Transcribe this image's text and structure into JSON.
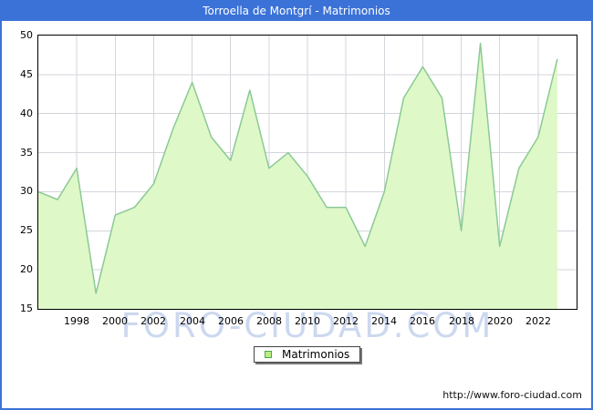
{
  "title_bar": {
    "text": "Torroella de Montgrí - Matrimonios"
  },
  "legend": {
    "label": "Matrimonios"
  },
  "watermark": {
    "text": "FORO-CIUDAD.COM"
  },
  "footer": {
    "url": "http://www.foro-ciudad.com"
  },
  "colors": {
    "frame_and_titlebar": "#3b72d8",
    "area_line": "#8bc996",
    "area_fill": "#dff8c8",
    "gridline": "#d4d4dc",
    "plot_border": "#000000",
    "watermark": "#ccd8ef",
    "legend_swatch_fill": "#b9ee83",
    "legend_swatch_border": "#4fa54f"
  },
  "chart_data": {
    "type": "area",
    "title": "Torroella de Montgrí - Matrimonios",
    "x": [
      1996,
      1997,
      1998,
      1999,
      2000,
      2001,
      2002,
      2003,
      2004,
      2005,
      2006,
      2007,
      2008,
      2009,
      2010,
      2011,
      2012,
      2013,
      2014,
      2015,
      2016,
      2017,
      2018,
      2019,
      2020,
      2021,
      2022,
      2023
    ],
    "series": [
      {
        "name": "Matrimonios",
        "values": [
          30,
          29,
          33,
          17,
          27,
          28,
          31,
          38,
          44,
          37,
          34,
          43,
          33,
          35,
          32,
          28,
          28,
          23,
          30,
          42,
          46,
          42,
          25,
          49,
          23,
          33,
          37,
          47
        ]
      }
    ],
    "xlabel": "",
    "ylabel": "",
    "xlim": [
      1996,
      2024
    ],
    "ylim": [
      15,
      50
    ],
    "yticks": [
      15,
      20,
      25,
      30,
      35,
      40,
      45,
      50
    ],
    "xticks": [
      1998,
      2000,
      2002,
      2004,
      2006,
      2008,
      2010,
      2012,
      2014,
      2016,
      2018,
      2020,
      2022
    ],
    "grid": true,
    "legend_position": "bottom-center"
  }
}
